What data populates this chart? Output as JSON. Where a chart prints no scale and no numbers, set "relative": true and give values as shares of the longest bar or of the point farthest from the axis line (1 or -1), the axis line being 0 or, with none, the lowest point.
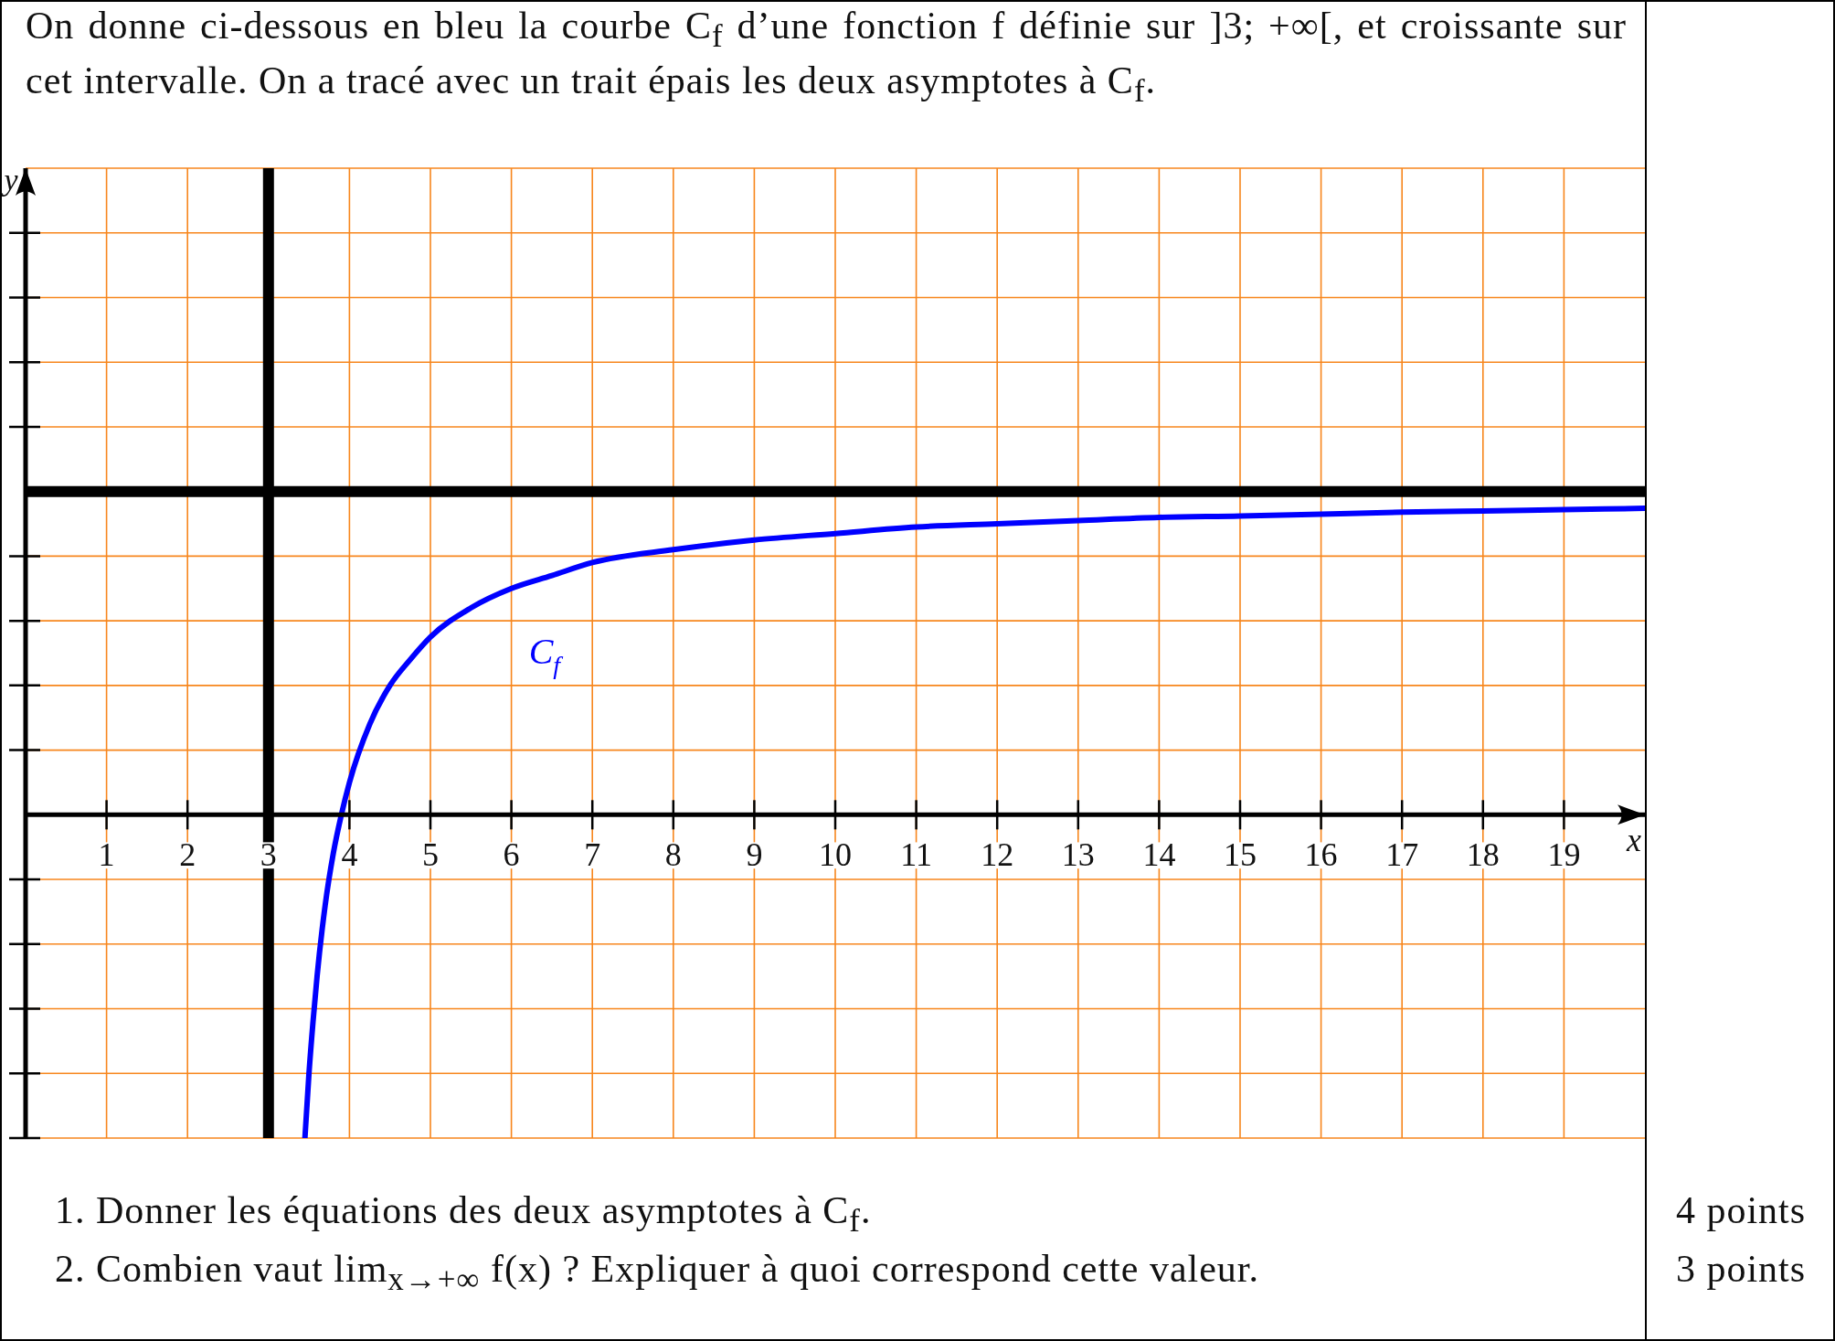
{
  "chart_data": {
    "type": "line",
    "title": "On donne ci-dessous en bleu la courbe C$_{f}$ d’une fonction f définie sur ]3; +∞[, et croissante sur cet intervalle. On a tracé avec un trait épais les deux asymptotes à C$_{f}$.",
    "xlabel": "x",
    "relative": true,
    "x": [
      3.45,
      3.5,
      3.55,
      3.6,
      3.7,
      3.8,
      3.9,
      4,
      4.25,
      4.5,
      4.75,
      5,
      5.5,
      6,
      6.5,
      7,
      8,
      9,
      10,
      11,
      12,
      13,
      14,
      15,
      16,
      17,
      18,
      19,
      20
    ],
    "series": [
      {
        "name": "C$_{f}$",
        "color": "#0000ff",
        "values": [
          -1,
          -0.8,
          -0.64,
          -0.5,
          -0.28,
          -0.12,
          0,
          0.1,
          0.28,
          0.4,
          0.48,
          0.55,
          0.64,
          0.7,
          0.74,
          0.78,
          0.82,
          0.85,
          0.87,
          0.89,
          0.9,
          0.91,
          0.92,
          0.924,
          0.93,
          0.936,
          0.94,
          0.944,
          0.948
        ]
      }
    ],
    "xlim": [
      0,
      20
    ],
    "xticks": [
      1,
      2,
      3,
      4,
      5,
      6,
      7,
      8,
      9,
      10,
      11,
      12,
      13,
      14,
      15,
      16,
      17,
      18,
      19
    ],
    "grid": true,
    "ref_lines": [
      {
        "axis": "x",
        "value": 3,
        "color": "#000000"
      },
      {
        "axis": "y",
        "value": 1,
        "color": "#000000"
      }
    ],
    "annotations": [
      "y",
      "1. Donner les équations des deux asymptotes à C$_{f}$.",
      "4 points",
      "2. Combien vaut lim$_{x→+∞}$ f(x) ? Expliquer à quoi correspond cette valeur.",
      "3 points"
    ]
  }
}
